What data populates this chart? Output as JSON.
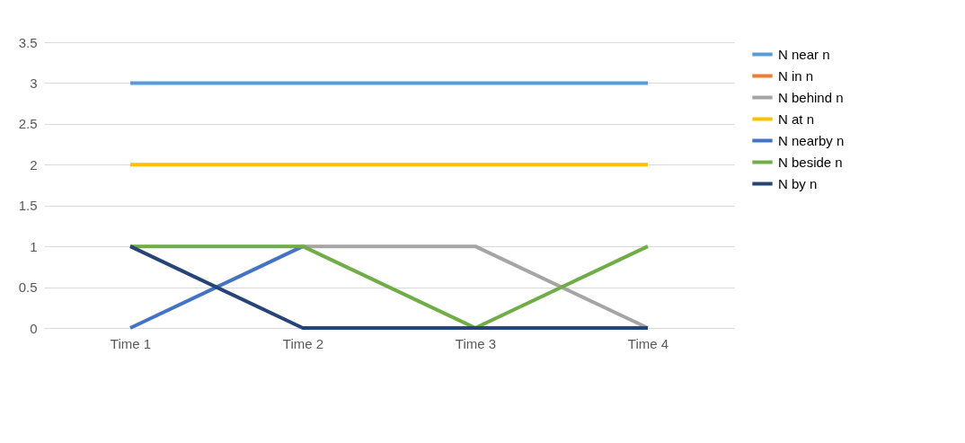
{
  "chart_data": {
    "type": "line",
    "categories": [
      "Time 1",
      "Time 2",
      "Time 3",
      "Time 4"
    ],
    "series": [
      {
        "name": "N near n",
        "color": "#5b9bd5",
        "values": [
          3,
          3,
          3,
          3
        ]
      },
      {
        "name": "N in n",
        "color": "#ed7d31",
        "values": [
          null,
          null,
          null,
          null
        ]
      },
      {
        "name": "N behind n",
        "color": "#a5a5a5",
        "values": [
          null,
          1,
          1,
          0
        ]
      },
      {
        "name": "N at n",
        "color": "#ffc000",
        "values": [
          2,
          2,
          2,
          2
        ]
      },
      {
        "name": "N nearby n",
        "color": "#4472c4",
        "values": [
          0,
          1,
          null,
          null
        ]
      },
      {
        "name": "N beside n",
        "color": "#70ad47",
        "values": [
          1,
          1,
          0,
          1
        ]
      },
      {
        "name": "N by n",
        "color": "#264478",
        "values": [
          1,
          0,
          0,
          0
        ]
      }
    ],
    "ylim": [
      0,
      3.5
    ],
    "yticks": [
      0,
      0.5,
      1,
      1.5,
      2,
      2.5,
      3,
      3.5
    ],
    "grid": "y",
    "legend": "right",
    "marker": "none",
    "line_style": "solid"
  }
}
